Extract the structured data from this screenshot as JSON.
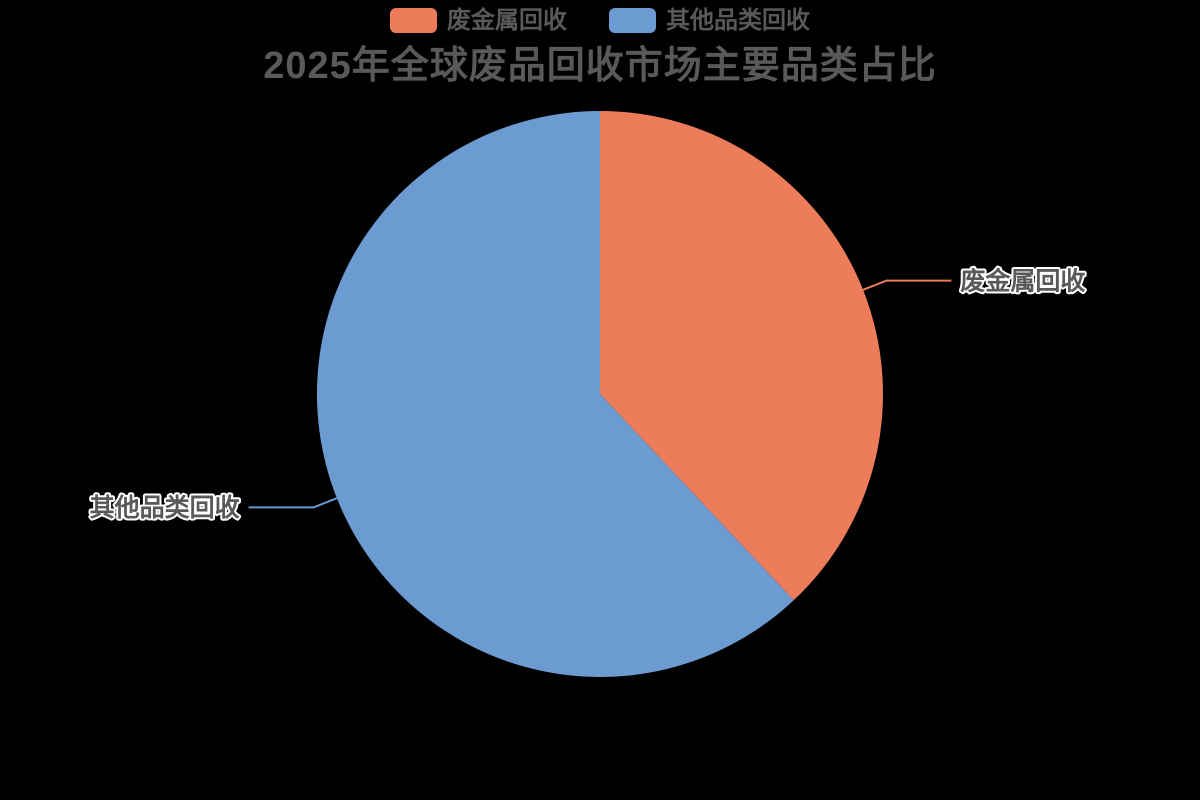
{
  "title": {
    "text": "2025年全球废品回收市场主要品类占比",
    "color": "#595959"
  },
  "legend": {
    "position": "top",
    "items": [
      {
        "label": "废金属回收",
        "color": "#EC7C5A"
      },
      {
        "label": "其他品类回收",
        "color": "#6C9BD2"
      }
    ]
  },
  "chart_data": {
    "type": "pie",
    "title": "2025年全球废品回收市场主要品类占比",
    "categories": [
      "废金属回收",
      "其他品类回收"
    ],
    "values": [
      38,
      62
    ],
    "unit": "percent",
    "colors": [
      "#EC7C5A",
      "#6C9BD2"
    ],
    "start_angle_deg": 0,
    "direction": "clockwise",
    "first_slice_starts_at": "12-o-clock",
    "legend_position": "top-center",
    "background": "#000000",
    "label_text_color": "#595959",
    "label_outline_color": "#ffffff",
    "label_leader_lines": true
  }
}
